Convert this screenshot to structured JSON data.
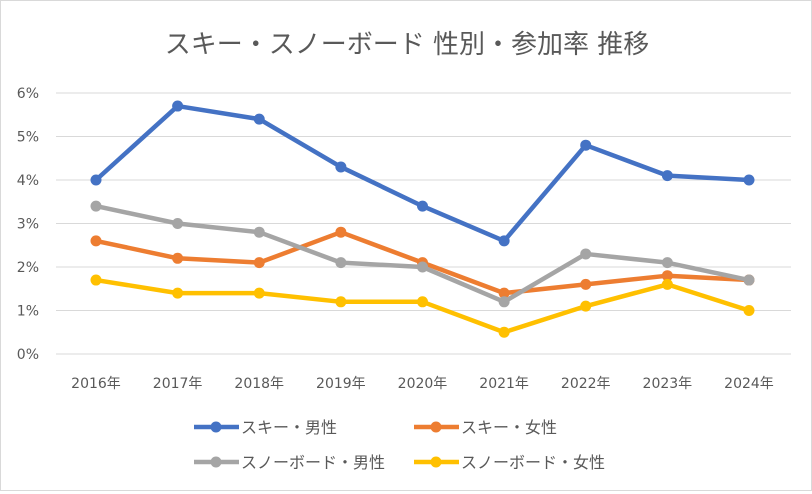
{
  "chart_data": {
    "type": "line",
    "title": "スキー・スノーボード 性別・参加率 推移",
    "xlabel": "",
    "ylabel": "",
    "categories": [
      "2016年",
      "2017年",
      "2018年",
      "2019年",
      "2020年",
      "2021年",
      "2022年",
      "2023年",
      "2024年"
    ],
    "ylim": [
      0,
      6
    ],
    "yticks": [
      "0%",
      "1%",
      "2%",
      "3%",
      "4%",
      "5%",
      "6%"
    ],
    "grid": true,
    "legend_position": "bottom",
    "series": [
      {
        "name": "スキー・男性",
        "color": "#4472C4",
        "values": [
          4.0,
          5.7,
          5.4,
          4.3,
          3.4,
          2.6,
          4.8,
          4.1,
          4.0
        ]
      },
      {
        "name": "スキー・女性",
        "color": "#ED7D31",
        "values": [
          2.6,
          2.2,
          2.1,
          2.8,
          2.1,
          1.4,
          1.6,
          1.8,
          1.7
        ]
      },
      {
        "name": "スノーボード・男性",
        "color": "#A5A5A5",
        "values": [
          3.4,
          3.0,
          2.8,
          2.1,
          2.0,
          1.2,
          2.3,
          2.1,
          1.7
        ]
      },
      {
        "name": "スノーボード・女性",
        "color": "#FFC000",
        "values": [
          1.7,
          1.4,
          1.4,
          1.2,
          1.2,
          0.5,
          1.1,
          1.6,
          1.0
        ]
      }
    ]
  }
}
